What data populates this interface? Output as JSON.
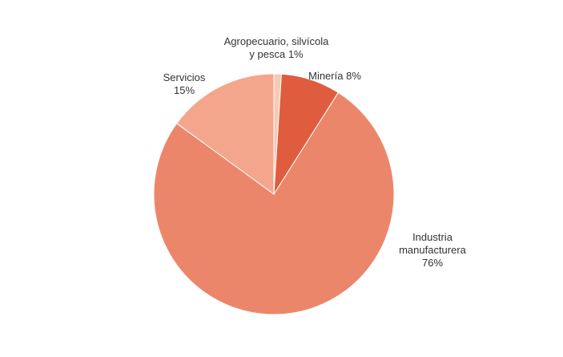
{
  "chart_data": {
    "type": "pie",
    "categories": [
      "Agropecuario, silvícola y pesca",
      "Minería",
      "Industria manufacturera",
      "Servicios"
    ],
    "values": [
      1,
      8,
      76,
      15
    ],
    "value_labels": [
      "1%",
      "8%",
      "76%",
      "15%"
    ],
    "colors": [
      "#f8c9b5",
      "#e05c3e",
      "#ec866b",
      "#f4a68c"
    ]
  }
}
